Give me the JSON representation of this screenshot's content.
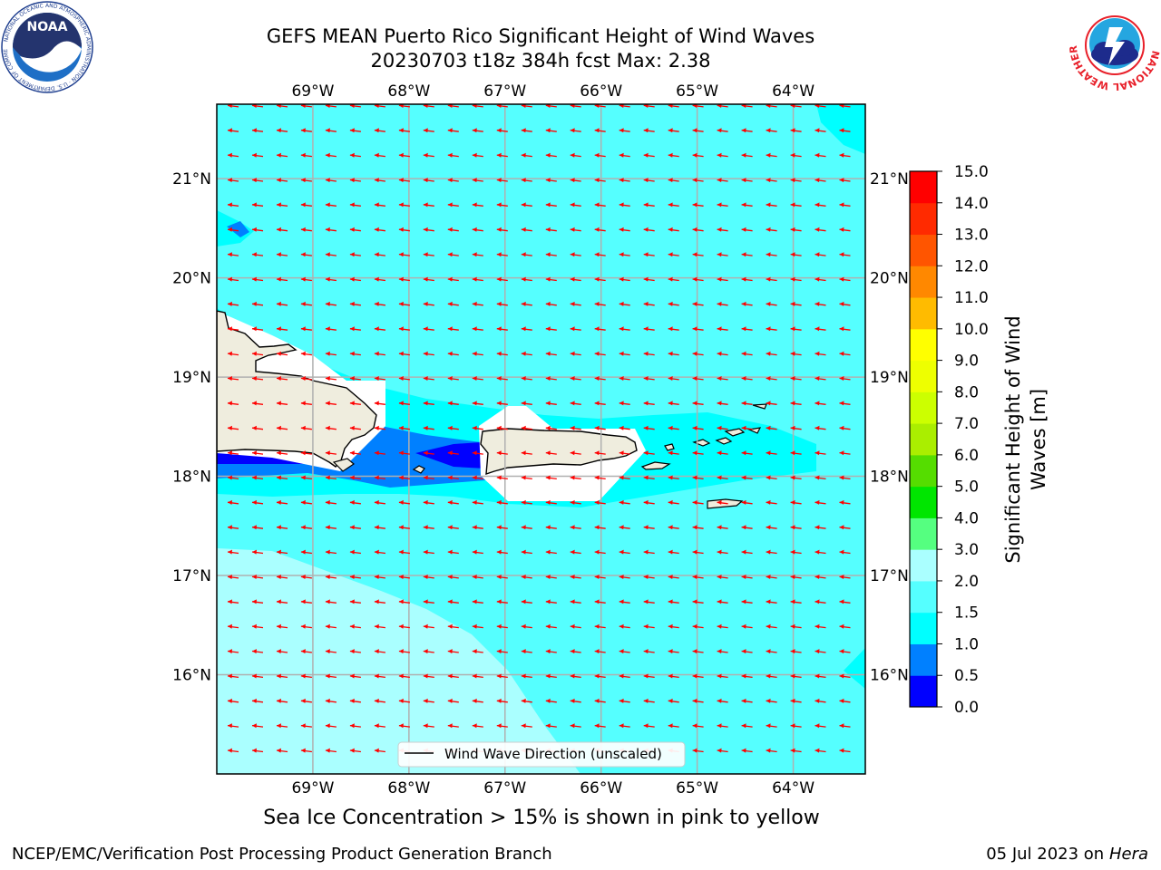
{
  "header": {
    "title_line1": "GEFS MEAN Puerto Rico Significant Height of Wind Waves",
    "title_line2": "20230703 t18z 384h fcst   Max: 2.38"
  },
  "map": {
    "lon_labels": [
      "69°W",
      "68°W",
      "67°W",
      "66°W",
      "65°W",
      "64°W"
    ],
    "lat_labels": [
      "21°N",
      "20°N",
      "19°N",
      "18°N",
      "17°N",
      "16°N"
    ],
    "lon_values": [
      -69,
      -68,
      -67,
      -66,
      -65,
      -64
    ],
    "lat_values": [
      21,
      20,
      19,
      18,
      17,
      16
    ],
    "lon_range": [
      -70,
      -63.25
    ],
    "lat_range": [
      15,
      21.75
    ],
    "gridlines": true,
    "ocean_color": "#00ffff",
    "land_color": "#efedde",
    "arrow_color": "#ff0000",
    "arrow_direction": "toward-west",
    "legend": {
      "label": "Wind Wave Direction (unscaled)",
      "placement": "bottom-center"
    }
  },
  "colorbar": {
    "label_line1": "Significant Height of Wind",
    "label_line2": "Waves [m]",
    "levels": [
      "0.0",
      "0.5",
      "1.0",
      "1.5",
      "2.0",
      "3.0",
      "4.0",
      "5.0",
      "6.0",
      "7.0",
      "8.0",
      "9.0",
      "10.0",
      "11.0",
      "12.0",
      "13.0",
      "14.0",
      "15.0"
    ],
    "colors": [
      "#0000ff",
      "#0080ff",
      "#00ffff",
      "#55ffff",
      "#aaffff",
      "#55ff80",
      "#00e600",
      "#55dd00",
      "#aaee00",
      "#ccff00",
      "#eeff00",
      "#ffff00",
      "#ffbb00",
      "#ff8800",
      "#ff5500",
      "#ff2a00",
      "#ff0000"
    ]
  },
  "footer": {
    "note": "Sea Ice Concentration > 15% is shown in pink to yellow",
    "credit_left": "NCEP/EMC/Verification Post Processing Product Generation Branch",
    "credit_date": "05 Jul 2023 on ",
    "credit_machine": "Hera"
  },
  "logos": {
    "noaa_text": "NOAA",
    "noaa_ring": "NATIONAL OCEANIC AND ATMOSPHERIC ADMINISTRATION · U.S. DEPARTMENT OF COMMERCE",
    "nws_ring": "NATIONAL WEATHER SERVICE"
  }
}
